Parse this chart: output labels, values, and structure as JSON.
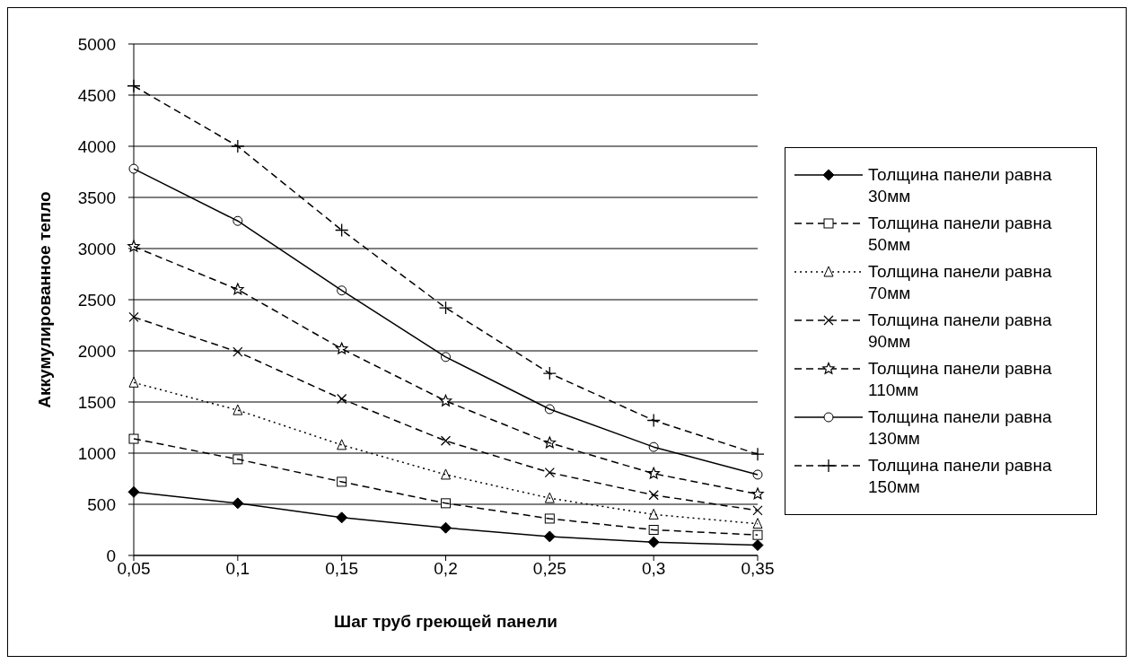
{
  "chart_data": {
    "type": "line",
    "xlabel": "Шаг труб греющей панели",
    "ylabel": "Аккумулированное тепло",
    "categories": [
      "0,05",
      "0,1",
      "0,15",
      "0,2",
      "0,25",
      "0,3",
      "0,35"
    ],
    "series": [
      {
        "name": "Толщина панели равна 30мм",
        "color": "#000000",
        "marker": "diamond",
        "line_style": "solid",
        "values": [
          620,
          510,
          370,
          270,
          185,
          130,
          100
        ]
      },
      {
        "name": "Толщина панели равна 50мм",
        "color": "#000000",
        "marker": "square",
        "line_style": "dashed",
        "values": [
          1140,
          940,
          720,
          510,
          360,
          250,
          200
        ]
      },
      {
        "name": "Толщина панели равна 70мм",
        "color": "#000000",
        "marker": "triangle",
        "line_style": "dotted",
        "values": [
          1690,
          1420,
          1080,
          790,
          560,
          400,
          310
        ]
      },
      {
        "name": "Толщина панели равна 90мм",
        "color": "#000000",
        "marker": "x",
        "line_style": "dashed",
        "values": [
          2330,
          1990,
          1530,
          1120,
          810,
          590,
          440
        ]
      },
      {
        "name": "Толщина панели равна 110мм",
        "color": "#000000",
        "marker": "star",
        "line_style": "dashed",
        "values": [
          3020,
          2600,
          2020,
          1510,
          1100,
          800,
          600
        ]
      },
      {
        "name": "Толщина панели равна 130мм",
        "color": "#000000",
        "marker": "circle",
        "line_style": "solid",
        "values": [
          3780,
          3270,
          2590,
          1940,
          1430,
          1060,
          790
        ]
      },
      {
        "name": "Толщина панели равна 150мм",
        "color": "#000000",
        "marker": "cross",
        "line_style": "dashed",
        "values": [
          4590,
          4000,
          3180,
          2420,
          1780,
          1320,
          990
        ]
      }
    ],
    "ylim": [
      0,
      5000
    ],
    "yticks": [
      0,
      500,
      1000,
      1500,
      2000,
      2500,
      3000,
      3500,
      4000,
      4500,
      5000
    ],
    "grid": "y",
    "legend": "right"
  }
}
